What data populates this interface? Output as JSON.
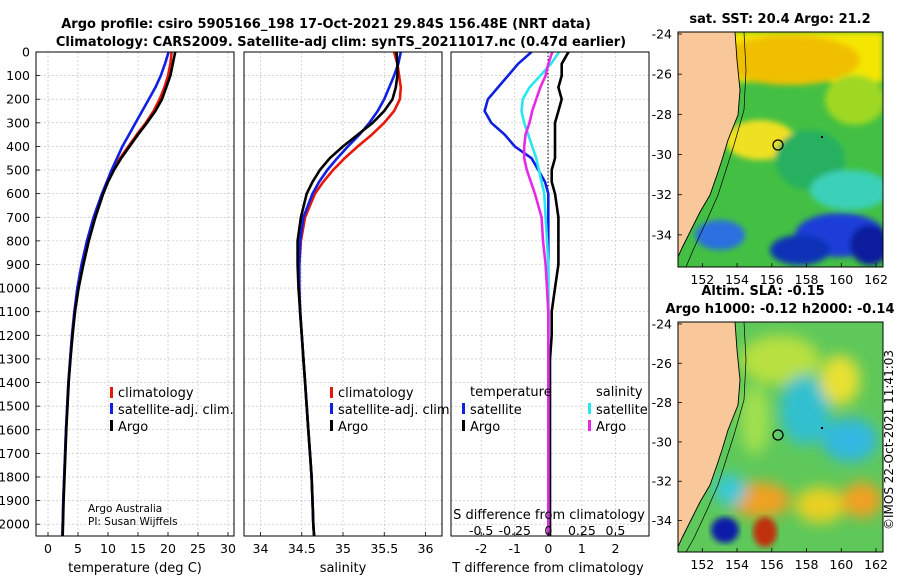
{
  "header": {
    "line1": "Argo profile: csiro 5905166_198 17-Oct-2021 29.84S 156.48E (NRT data)",
    "line2": "Climatology: CARS2009. Satellite-adj clim: synTS_20211017.nc (0.47d earlier)"
  },
  "colors": {
    "argo": "#000000",
    "clim": "#e8170a",
    "sat": "#1020e0",
    "cyan": "#29e6f0",
    "magenta": "#e629e6",
    "land": "#f8c89a"
  },
  "depth_ticks": [
    "0",
    "100",
    "200",
    "300",
    "400",
    "500",
    "600",
    "700",
    "800",
    "900",
    "1000",
    "1100",
    "1200",
    "1300",
    "1400",
    "1500",
    "1600",
    "1700",
    "1800",
    "1900",
    "2000"
  ],
  "chart_data": [
    {
      "type": "line",
      "title": "",
      "xlabel": "temperature (deg C)",
      "ylabel": "depth",
      "xlim": [
        -2,
        31
      ],
      "ylim": [
        0,
        2050
      ],
      "xticks": [
        0,
        5,
        10,
        15,
        20,
        25,
        30
      ],
      "xtick_labels": [
        "0",
        "5",
        "10",
        "15",
        "20",
        "25",
        "30"
      ],
      "legend": [
        "climatology",
        "satellite-adj. clim.",
        "Argo"
      ],
      "credits": [
        "Argo Australia",
        "PI: Susan Wijffels"
      ],
      "series": [
        {
          "name": "climatology",
          "depth": [
            0,
            50,
            100,
            150,
            200,
            250,
            300,
            350,
            400,
            450,
            500,
            550,
            600,
            700,
            800,
            900,
            1000,
            1100,
            1200,
            1300,
            1400,
            1500,
            1600,
            1700,
            1800,
            1900,
            2000,
            2050
          ],
          "values": [
            20.6,
            20.4,
            20.0,
            19.4,
            18.6,
            17.6,
            16.3,
            14.8,
            13.4,
            12.0,
            10.9,
            9.9,
            9.0,
            7.6,
            6.5,
            5.6,
            4.9,
            4.4,
            4.0,
            3.7,
            3.4,
            3.2,
            3.0,
            2.85,
            2.7,
            2.55,
            2.45,
            2.4
          ]
        },
        {
          "name": "satellite-adj. clim.",
          "depth": [
            0,
            50,
            100,
            150,
            200,
            250,
            300,
            350,
            400,
            450,
            500,
            550,
            600,
            700,
            800,
            900,
            1000,
            1100,
            1200,
            1300,
            1400,
            1500,
            1600,
            1700,
            1800,
            1900,
            2000,
            2050
          ],
          "values": [
            20.1,
            19.5,
            18.8,
            17.9,
            16.8,
            15.7,
            14.6,
            13.5,
            12.4,
            11.5,
            10.6,
            9.8,
            9.0,
            7.6,
            6.5,
            5.6,
            4.9,
            4.4,
            4.0,
            3.7,
            3.4,
            3.2,
            3.0,
            2.85,
            2.7,
            2.55,
            2.45,
            2.4
          ]
        },
        {
          "name": "Argo",
          "depth": [
            0,
            50,
            100,
            150,
            200,
            250,
            300,
            350,
            400,
            450,
            500,
            550,
            600,
            700,
            800,
            900,
            1000,
            1100,
            1200,
            1300,
            1400,
            1500,
            1600,
            1700,
            1800,
            1900,
            2000,
            2050
          ],
          "values": [
            21.2,
            20.8,
            20.4,
            19.7,
            19.0,
            17.9,
            16.5,
            15.0,
            13.6,
            12.2,
            11.0,
            10.0,
            9.2,
            7.9,
            6.8,
            5.9,
            5.1,
            4.5,
            4.1,
            3.75,
            3.45,
            3.25,
            3.05,
            2.9,
            2.75,
            2.6,
            2.5,
            2.45
          ]
        }
      ]
    },
    {
      "type": "line",
      "title": "",
      "xlabel": "salinity",
      "ylabel": "depth",
      "xlim": [
        33.8,
        36.2
      ],
      "ylim": [
        0,
        2050
      ],
      "xticks": [
        34,
        34.5,
        35,
        35.5,
        36
      ],
      "xtick_labels": [
        "34",
        "34.5",
        "35",
        "35.5",
        "36"
      ],
      "legend": [
        "climatology",
        "satellite-adj. clim.",
        "Argo"
      ],
      "series": [
        {
          "name": "climatology",
          "depth": [
            0,
            50,
            100,
            150,
            200,
            250,
            300,
            350,
            400,
            450,
            500,
            550,
            600,
            700,
            800,
            900,
            1000,
            1100,
            1200,
            1300,
            1400,
            1500,
            1600,
            1700,
            1800,
            1900,
            2000,
            2050
          ],
          "values": [
            35.62,
            35.66,
            35.68,
            35.7,
            35.69,
            35.62,
            35.5,
            35.35,
            35.18,
            35.02,
            34.88,
            34.76,
            34.66,
            34.54,
            34.49,
            34.47,
            34.47,
            34.48,
            34.5,
            34.52,
            34.54,
            34.56,
            34.58,
            34.6,
            34.62,
            34.63,
            34.64,
            34.65
          ]
        },
        {
          "name": "satellite-adj. clim.",
          "depth": [
            0,
            50,
            100,
            150,
            200,
            250,
            300,
            350,
            400,
            450,
            500,
            550,
            600,
            700,
            800,
            900,
            1000,
            1100,
            1200,
            1300,
            1400,
            1500,
            1600,
            1700,
            1800,
            1900,
            2000,
            2050
          ],
          "values": [
            35.7,
            35.67,
            35.62,
            35.56,
            35.5,
            35.42,
            35.32,
            35.2,
            35.06,
            34.93,
            34.81,
            34.71,
            34.63,
            34.52,
            34.48,
            34.47,
            34.47,
            34.48,
            34.5,
            34.52,
            34.54,
            34.56,
            34.58,
            34.6,
            34.62,
            34.63,
            34.64,
            34.65
          ]
        },
        {
          "name": "Argo",
          "depth": [
            0,
            50,
            100,
            150,
            200,
            250,
            300,
            350,
            400,
            450,
            500,
            550,
            600,
            700,
            800,
            900,
            1000,
            1100,
            1200,
            1300,
            1400,
            1500,
            1600,
            1700,
            1800,
            1900,
            2000,
            2050
          ],
          "values": [
            35.65,
            35.66,
            35.66,
            35.64,
            35.6,
            35.5,
            35.36,
            35.18,
            35.0,
            34.84,
            34.72,
            34.63,
            34.56,
            34.49,
            34.45,
            34.45,
            34.46,
            34.48,
            34.5,
            34.52,
            34.54,
            34.56,
            34.58,
            34.6,
            34.62,
            34.63,
            34.64,
            34.65
          ]
        }
      ]
    },
    {
      "type": "line",
      "title": "",
      "xlabel": "T difference from climatology",
      "xlabel_top": "S difference from climatology",
      "ylabel": "depth",
      "xlim": [
        -2.9,
        3.0
      ],
      "ylim": [
        0,
        2050
      ],
      "xticks": [
        -2,
        -1,
        0,
        1,
        2
      ],
      "xtick_labels": [
        "-2",
        "-1",
        "0",
        "1",
        "2"
      ],
      "s_tick_labels": [
        "-0.5",
        "-0.25",
        "0",
        "0.25",
        "0.5"
      ],
      "s_scale": 4,
      "legend_left": [
        "temperature",
        "satellite",
        "Argo"
      ],
      "legend_right": [
        "salinity",
        "satellite",
        "Argo"
      ],
      "series": [
        {
          "name": "temperature satellite",
          "depth": [
            0,
            50,
            100,
            150,
            200,
            250,
            300,
            350,
            400,
            450,
            500,
            550,
            600,
            700,
            800,
            900,
            1000,
            1100,
            1200,
            1300,
            1400,
            1500,
            1600,
            1700,
            1800,
            1900,
            2000,
            2050
          ],
          "values": [
            -0.5,
            -0.9,
            -1.2,
            -1.5,
            -1.8,
            -1.9,
            -1.7,
            -1.3,
            -1.0,
            -0.5,
            -0.3,
            -0.1,
            0,
            0,
            0,
            0,
            0,
            0,
            0,
            0,
            0,
            0,
            0,
            0,
            0,
            0,
            0,
            0
          ]
        },
        {
          "name": "temperature Argo",
          "depth": [
            0,
            50,
            100,
            150,
            200,
            250,
            300,
            350,
            400,
            450,
            500,
            550,
            600,
            700,
            800,
            900,
            1000,
            1100,
            1200,
            1300,
            1400,
            1500,
            1600,
            1700,
            1800,
            1900,
            2000,
            2050
          ],
          "values": [
            0.6,
            0.4,
            0.4,
            0.3,
            0.4,
            0.3,
            0.2,
            0.2,
            0.2,
            0.2,
            0.1,
            0.1,
            0.2,
            0.3,
            0.3,
            0.3,
            0.2,
            0.1,
            0.1,
            0.05,
            0.05,
            0.05,
            0.05,
            0.05,
            0.05,
            0.05,
            0.05,
            0.05
          ]
        },
        {
          "name": "salinity satellite",
          "depth": [
            0,
            50,
            100,
            150,
            200,
            250,
            300,
            350,
            400,
            450,
            500,
            550,
            600,
            700,
            800,
            900,
            1000,
            1100,
            1200,
            1300,
            1400,
            1500,
            1600,
            1700,
            1800,
            1900,
            2000,
            2050
          ],
          "values": [
            0.08,
            0.02,
            -0.06,
            -0.14,
            -0.19,
            -0.2,
            -0.18,
            -0.15,
            -0.12,
            -0.09,
            -0.07,
            -0.05,
            -0.03,
            -0.02,
            -0.01,
            0,
            0,
            0,
            0,
            0,
            0,
            0,
            0,
            0,
            0,
            0,
            0,
            0
          ]
        },
        {
          "name": "salinity Argo",
          "depth": [
            0,
            50,
            100,
            150,
            200,
            250,
            300,
            350,
            400,
            450,
            500,
            550,
            600,
            700,
            800,
            900,
            1000,
            1100,
            1200,
            1300,
            1400,
            1500,
            1600,
            1700,
            1800,
            1900,
            2000,
            2050
          ],
          "values": [
            0.03,
            0,
            -0.02,
            -0.06,
            -0.09,
            -0.12,
            -0.14,
            -0.17,
            -0.18,
            -0.18,
            -0.16,
            -0.13,
            -0.1,
            -0.05,
            -0.04,
            -0.02,
            -0.01,
            0,
            0,
            0,
            0,
            0,
            0,
            0,
            0,
            0,
            0,
            0
          ]
        }
      ]
    },
    {
      "type": "heatmap",
      "title": "sat. SST: 20.4 Argo: 21.2",
      "xlabel": "",
      "ylabel": "",
      "xlim": [
        150.6,
        162.4
      ],
      "ylim": [
        -35.6,
        -23.9
      ],
      "xtick_labels": [
        "152",
        "154",
        "156",
        "158",
        "160",
        "162"
      ],
      "ytick_labels": [
        "-24",
        "-26",
        "-28",
        "-30",
        "-32",
        "-34"
      ]
    },
    {
      "type": "heatmap",
      "title": "Altim. SLA: -0.15",
      "subtitle": "Argo h1000: -0.12 h2000: -0.14",
      "xlabel": "",
      "ylabel": "",
      "xlim": [
        150.6,
        162.4
      ],
      "ylim": [
        -35.6,
        -23.9
      ],
      "xtick_labels": [
        "152",
        "154",
        "156",
        "158",
        "160",
        "162"
      ],
      "ytick_labels": [
        "-24",
        "-26",
        "-28",
        "-30",
        "-32",
        "-34"
      ]
    }
  ],
  "footer": "©IMOS 22-Oct-2021 11:41:03"
}
